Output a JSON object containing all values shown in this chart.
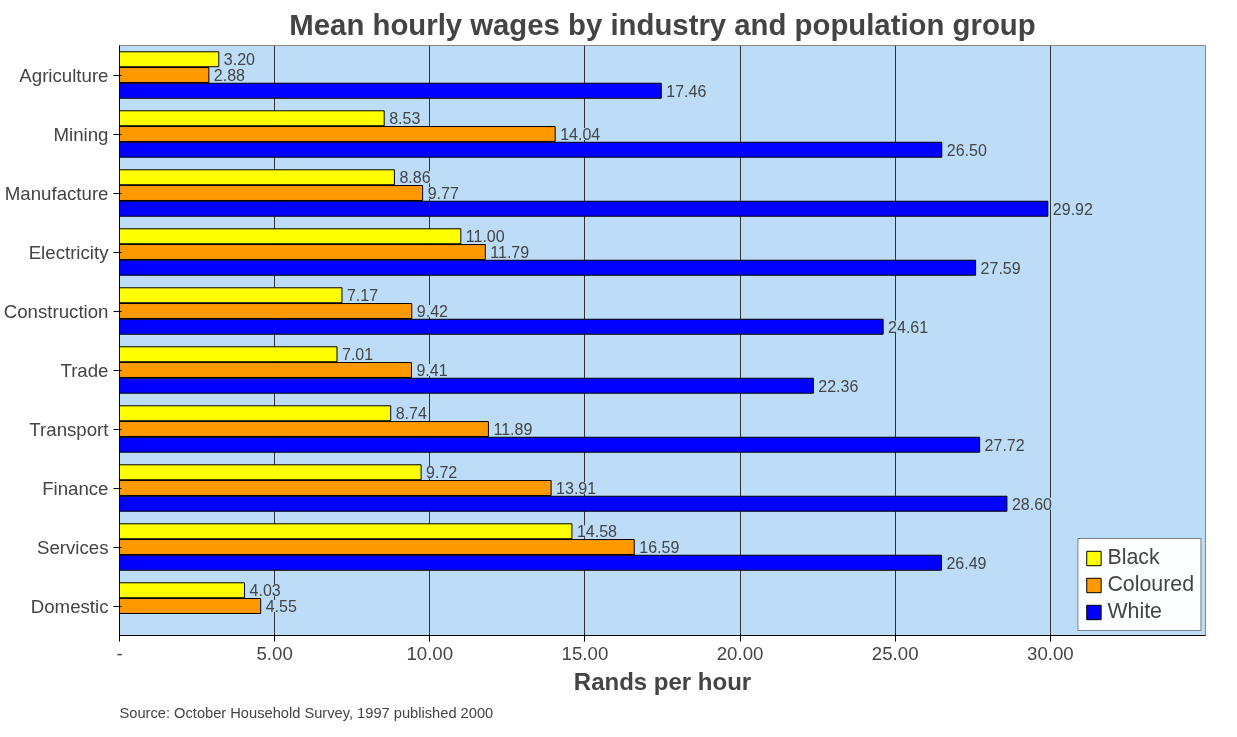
{
  "chart_data": {
    "type": "bar",
    "orientation": "horizontal",
    "title": "Mean hourly wages by industry and population group",
    "xlabel": "Rands per hour",
    "categories": [
      "Agriculture",
      "Mining",
      "Manufacture",
      "Electricity",
      "Construction",
      "Trade",
      "Transport",
      "Finance",
      "Services",
      "Domestic"
    ],
    "series": [
      {
        "name": "Black",
        "color": "#ffff00",
        "values": [
          3.2,
          8.53,
          8.86,
          11.0,
          7.17,
          7.01,
          8.74,
          9.72,
          14.58,
          4.03
        ],
        "value_labels": [
          "3.20",
          "8.53",
          "8.86",
          "11.00",
          "7.17",
          "7.01",
          "8.74",
          "9.72",
          "14.58",
          "4.03"
        ]
      },
      {
        "name": "Coloured",
        "color": "#ff9900",
        "values": [
          2.88,
          14.04,
          9.77,
          11.79,
          9.42,
          9.41,
          11.89,
          13.91,
          16.59,
          4.55
        ],
        "value_labels": [
          "2.88",
          "14.04",
          "9.77",
          "11.79",
          "9.42",
          "9.41",
          "11.89",
          "13.91",
          "16.59",
          "4.55"
        ]
      },
      {
        "name": "White",
        "color": "#0000ff",
        "values": [
          17.46,
          26.5,
          29.92,
          27.59,
          24.61,
          22.36,
          27.72,
          28.6,
          26.49,
          null
        ],
        "value_labels": [
          "17.46",
          "26.50",
          "29.92",
          "27.59",
          "24.61",
          "22.36",
          "27.72",
          "28.60",
          "26.49",
          null
        ]
      }
    ],
    "xlim": [
      0,
      35
    ],
    "xticks": [
      {
        "value": 0,
        "label": "-"
      },
      {
        "value": 5,
        "label": "5.00"
      },
      {
        "value": 10,
        "label": "10.00"
      },
      {
        "value": 15,
        "label": "15.00"
      },
      {
        "value": 20,
        "label": "20.00"
      },
      {
        "value": 25,
        "label": "25.00"
      },
      {
        "value": 30,
        "label": "30.00"
      }
    ],
    "grid": "x",
    "legend": "bottom right",
    "annotations": [
      "Source: October Household Survey, 1997 published 2000"
    ]
  }
}
